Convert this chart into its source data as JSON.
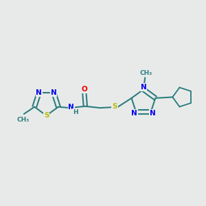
{
  "bg_color": "#e8eaea",
  "bond_color": "#2d7d7d",
  "bond_width": 1.5,
  "N_color": "#0000ee",
  "S_color": "#bbbb00",
  "O_color": "#ee0000",
  "C_color": "#2d7d7d",
  "figsize": [
    3.0,
    3.0
  ],
  "dpi": 100,
  "xlim": [
    0,
    10
  ],
  "ylim": [
    2,
    8
  ]
}
